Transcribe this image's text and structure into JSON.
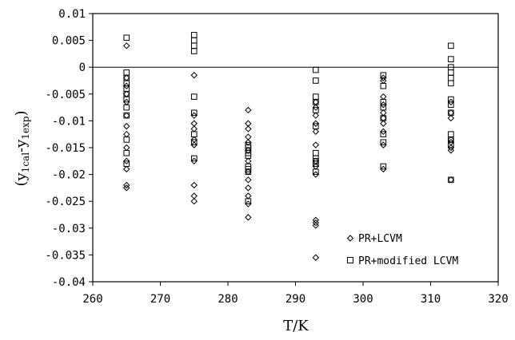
{
  "chart_data": {
    "type": "scatter",
    "xlabel": "T/K",
    "ylabel_main": "(y",
    "ylabel_sub1": "1cal",
    "ylabel_mid": "-y",
    "ylabel_sub2": "1exp",
    "ylabel_end": ")",
    "xlim": [
      260,
      320
    ],
    "ylim": [
      -0.04,
      0.01
    ],
    "x_ticks": [
      260,
      270,
      280,
      290,
      300,
      310,
      320
    ],
    "y_ticks": [
      0.01,
      0.005,
      0,
      -0.005,
      -0.01,
      -0.015,
      -0.02,
      -0.025,
      -0.03,
      -0.035,
      -0.04
    ],
    "x_tick_labels": [
      "260",
      "270",
      "280",
      "290",
      "300",
      "310",
      "320"
    ],
    "y_tick_labels": [
      "0.01",
      "0.005",
      "0",
      "-0.005",
      "-0.01",
      "-0.015",
      "-0.02",
      "-0.025",
      "-0.03",
      "-0.035",
      "-0.04"
    ],
    "grid": false,
    "reference_line_y": 0,
    "legend_position": "bottom-right",
    "series": [
      {
        "name": "PR+LCVM",
        "marker": "diamond",
        "points": [
          [
            265,
            0.004
          ],
          [
            265,
            -0.002
          ],
          [
            265,
            -0.0035
          ],
          [
            265,
            -0.005
          ],
          [
            265,
            -0.0065
          ],
          [
            265,
            -0.009
          ],
          [
            265,
            -0.011
          ],
          [
            265,
            -0.0125
          ],
          [
            265,
            -0.015
          ],
          [
            265,
            -0.0175
          ],
          [
            265,
            -0.019
          ],
          [
            265,
            -0.022
          ],
          [
            265,
            -0.0225
          ],
          [
            275,
            -0.0015
          ],
          [
            275,
            -0.009
          ],
          [
            275,
            -0.0105
          ],
          [
            275,
            -0.0115
          ],
          [
            275,
            -0.0135
          ],
          [
            275,
            -0.0145
          ],
          [
            275,
            -0.0175
          ],
          [
            275,
            -0.022
          ],
          [
            275,
            -0.024
          ],
          [
            275,
            -0.025
          ],
          [
            283,
            -0.008
          ],
          [
            283,
            -0.0105
          ],
          [
            283,
            -0.0115
          ],
          [
            283,
            -0.013
          ],
          [
            283,
            -0.014
          ],
          [
            283,
            -0.0155
          ],
          [
            283,
            -0.0175
          ],
          [
            283,
            -0.0195
          ],
          [
            283,
            -0.021
          ],
          [
            283,
            -0.0225
          ],
          [
            283,
            -0.024
          ],
          [
            283,
            -0.0255
          ],
          [
            283,
            -0.028
          ],
          [
            293,
            -0.0065
          ],
          [
            293,
            -0.0075
          ],
          [
            293,
            -0.009
          ],
          [
            293,
            -0.0105
          ],
          [
            293,
            -0.012
          ],
          [
            293,
            -0.0145
          ],
          [
            293,
            -0.0175
          ],
          [
            293,
            -0.0185
          ],
          [
            293,
            -0.02
          ],
          [
            293,
            -0.0285
          ],
          [
            293,
            -0.029
          ],
          [
            293,
            -0.0295
          ],
          [
            293,
            -0.0355
          ],
          [
            303,
            -0.002
          ],
          [
            303,
            -0.0025
          ],
          [
            303,
            -0.0055
          ],
          [
            303,
            -0.007
          ],
          [
            303,
            -0.0085
          ],
          [
            303,
            -0.0095
          ],
          [
            303,
            -0.0105
          ],
          [
            303,
            -0.012
          ],
          [
            303,
            -0.0145
          ],
          [
            303,
            -0.019
          ],
          [
            313,
            -0.0065
          ],
          [
            313,
            -0.0085
          ],
          [
            313,
            -0.0095
          ],
          [
            313,
            -0.0135
          ],
          [
            313,
            -0.014
          ],
          [
            313,
            -0.015
          ],
          [
            313,
            -0.0155
          ],
          [
            313,
            -0.021
          ]
        ]
      },
      {
        "name": "PR+modified LCVM",
        "marker": "square",
        "points": [
          [
            265,
            0.0055
          ],
          [
            265,
            -0.001
          ],
          [
            265,
            -0.002
          ],
          [
            265,
            -0.003
          ],
          [
            265,
            -0.004
          ],
          [
            265,
            -0.005
          ],
          [
            265,
            -0.006
          ],
          [
            265,
            -0.0075
          ],
          [
            265,
            -0.009
          ],
          [
            265,
            -0.0135
          ],
          [
            265,
            -0.016
          ],
          [
            265,
            -0.018
          ],
          [
            275,
            0.006
          ],
          [
            275,
            0.005
          ],
          [
            275,
            0.004
          ],
          [
            275,
            0.003
          ],
          [
            275,
            -0.0055
          ],
          [
            275,
            -0.0085
          ],
          [
            275,
            -0.0125
          ],
          [
            275,
            -0.014
          ],
          [
            275,
            -0.017
          ],
          [
            283,
            -0.0145
          ],
          [
            283,
            -0.015
          ],
          [
            283,
            -0.0155
          ],
          [
            283,
            -0.016
          ],
          [
            283,
            -0.0165
          ],
          [
            283,
            -0.0185
          ],
          [
            283,
            -0.019
          ],
          [
            283,
            -0.0195
          ],
          [
            283,
            -0.025
          ],
          [
            293,
            -0.0005
          ],
          [
            293,
            -0.0025
          ],
          [
            293,
            -0.0055
          ],
          [
            293,
            -0.0065
          ],
          [
            293,
            -0.008
          ],
          [
            293,
            -0.011
          ],
          [
            293,
            -0.016
          ],
          [
            293,
            -0.017
          ],
          [
            293,
            -0.0175
          ],
          [
            293,
            -0.018
          ],
          [
            293,
            -0.0195
          ],
          [
            303,
            -0.0015
          ],
          [
            303,
            -0.0035
          ],
          [
            303,
            -0.0065
          ],
          [
            303,
            -0.0075
          ],
          [
            303,
            -0.0095
          ],
          [
            303,
            -0.0125
          ],
          [
            303,
            -0.014
          ],
          [
            303,
            -0.0185
          ],
          [
            313,
            0.004
          ],
          [
            313,
            0.0015
          ],
          [
            313,
            0.0
          ],
          [
            313,
            -0.001
          ],
          [
            313,
            -0.002
          ],
          [
            313,
            -0.003
          ],
          [
            313,
            -0.006
          ],
          [
            313,
            -0.007
          ],
          [
            313,
            -0.0085
          ],
          [
            313,
            -0.0125
          ],
          [
            313,
            -0.0135
          ],
          [
            313,
            -0.0145
          ],
          [
            313,
            -0.021
          ]
        ]
      }
    ]
  }
}
